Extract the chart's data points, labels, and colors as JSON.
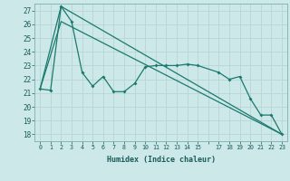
{
  "background_color": "#cde8e8",
  "grid_color": "#b8d4d4",
  "line_color": "#1a7a6e",
  "x_label": "Humidex (Indice chaleur)",
  "ylim": [
    17.5,
    27.5
  ],
  "xlim": [
    -0.5,
    23.5
  ],
  "yticks": [
    18,
    19,
    20,
    21,
    22,
    23,
    24,
    25,
    26,
    27
  ],
  "xtick_positions": [
    0,
    1,
    2,
    3,
    4,
    5,
    6,
    7,
    8,
    9,
    10,
    11,
    12,
    13,
    14,
    15,
    16,
    17,
    18,
    19,
    20,
    21,
    22,
    23
  ],
  "xtick_labels": [
    "0",
    "1",
    "2",
    "3",
    "4",
    "5",
    "6",
    "7",
    "8",
    "9",
    "10",
    "11",
    "12",
    "13",
    "14",
    "15",
    "",
    "17",
    "18",
    "19",
    "20",
    "21",
    "22",
    "23"
  ],
  "line1_x": [
    0,
    1,
    2,
    3,
    4,
    5,
    6,
    7,
    8,
    9,
    10,
    11,
    12,
    13,
    14,
    15,
    17,
    18,
    19,
    20,
    21,
    22,
    23
  ],
  "line1_y": [
    21.3,
    21.2,
    27.3,
    26.2,
    22.5,
    21.5,
    22.2,
    21.1,
    21.1,
    21.7,
    22.9,
    23.0,
    23.0,
    23.0,
    23.1,
    23.0,
    22.5,
    22.0,
    22.2,
    20.6,
    19.4,
    19.4,
    18.0
  ],
  "line2_x": [
    0,
    2,
    23
  ],
  "line2_y": [
    21.3,
    27.3,
    18.0
  ],
  "line3_x": [
    0,
    2,
    23
  ],
  "line3_y": [
    21.3,
    26.2,
    18.0
  ],
  "fig_width": 3.2,
  "fig_height": 2.0,
  "dpi": 100
}
